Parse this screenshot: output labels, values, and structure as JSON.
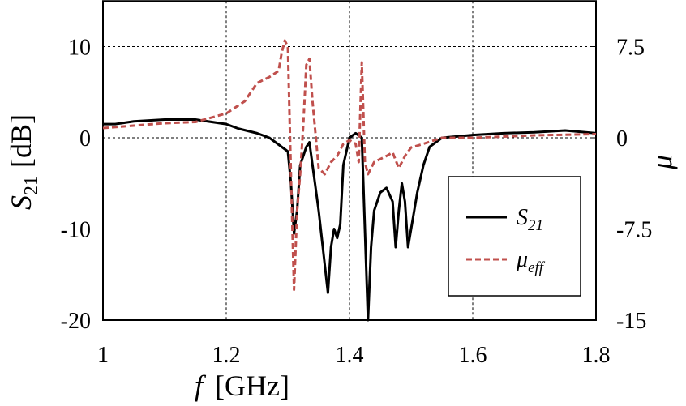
{
  "chart_data": {
    "type": "line",
    "xlabel": "f",
    "xlabel_unit": "[GHz]",
    "ylabel": "S",
    "ylabel_sub": "21",
    "ylabel_unit": "[dB]",
    "y2label": "μ",
    "xlim": [
      1,
      1.8
    ],
    "xticks": [
      1,
      1.2,
      1.4,
      1.6,
      1.8
    ],
    "ylim": [
      -20,
      15
    ],
    "yticks": [
      -20,
      -10,
      0,
      10
    ],
    "y2lim": [
      -15,
      11.25
    ],
    "y2ticks": [
      -15,
      -7.5,
      0,
      7.5
    ],
    "grid": true,
    "legend": "lower-right",
    "series": [
      {
        "name": "S",
        "name_sub": "21",
        "color": "#000000",
        "dash": false,
        "x": [
          1.0,
          1.02,
          1.05,
          1.1,
          1.15,
          1.2,
          1.22,
          1.25,
          1.27,
          1.29,
          1.3,
          1.305,
          1.31,
          1.315,
          1.32,
          1.33,
          1.335,
          1.34,
          1.35,
          1.36,
          1.365,
          1.37,
          1.375,
          1.38,
          1.385,
          1.39,
          1.4,
          1.41,
          1.42,
          1.425,
          1.43,
          1.435,
          1.44,
          1.45,
          1.46,
          1.47,
          1.475,
          1.48,
          1.485,
          1.49,
          1.495,
          1.5,
          1.51,
          1.52,
          1.53,
          1.55,
          1.6,
          1.65,
          1.7,
          1.75,
          1.8
        ],
        "values": [
          1.5,
          1.5,
          1.8,
          2,
          2,
          1.5,
          1,
          0.5,
          0,
          -1,
          -1.5,
          -5,
          -10.5,
          -8,
          -3,
          -1,
          -0.5,
          -3,
          -8,
          -14,
          -17,
          -12,
          -10,
          -11,
          -9.5,
          -3,
          0,
          0.5,
          0,
          -10,
          -20,
          -12,
          -8,
          -6,
          -5.5,
          -7,
          -12,
          -8,
          -5,
          -7,
          -12,
          -10,
          -6,
          -3,
          -1,
          0,
          0.3,
          0.5,
          0.6,
          0.8,
          0.5
        ]
      },
      {
        "name": "μ",
        "name_sub": "eff",
        "color": "#c0504d",
        "dash": true,
        "axis": "y2",
        "x": [
          1.0,
          1.05,
          1.1,
          1.15,
          1.2,
          1.23,
          1.25,
          1.27,
          1.285,
          1.29,
          1.295,
          1.3,
          1.305,
          1.31,
          1.315,
          1.32,
          1.325,
          1.33,
          1.335,
          1.34,
          1.35,
          1.36,
          1.37,
          1.38,
          1.39,
          1.4,
          1.41,
          1.415,
          1.42,
          1.425,
          1.43,
          1.44,
          1.46,
          1.47,
          1.48,
          1.49,
          1.5,
          1.52,
          1.55,
          1.6,
          1.7,
          1.8
        ],
        "values": [
          0.8,
          1,
          1.2,
          1.3,
          2,
          3,
          4.5,
          5,
          5.5,
          7,
          8,
          7.5,
          -3,
          -12.5,
          -6,
          -3,
          1,
          6,
          6.5,
          3,
          -2.5,
          -3,
          -2,
          -1.5,
          -0.5,
          -0.2,
          -0.5,
          -2,
          6.2,
          -2,
          -3,
          -2,
          -1.5,
          -1.2,
          -2.5,
          -1.5,
          -0.8,
          -0.5,
          0,
          0,
          0.2,
          0.3
        ]
      }
    ]
  }
}
